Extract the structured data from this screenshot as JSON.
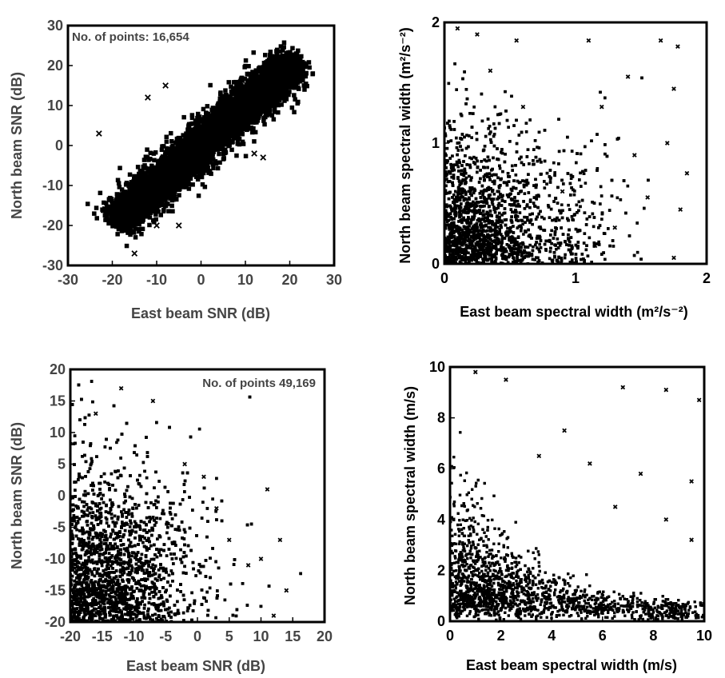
{
  "chart_data": [
    {
      "type": "scatter",
      "xlabel": "East beam SNR (dB)",
      "ylabel": "North beam SNR (dB)",
      "annotation": "No. of points: 16,654",
      "xlim": [
        -30,
        30
      ],
      "ylim": [
        -30,
        30
      ],
      "xticks": [
        -30,
        -20,
        -10,
        0,
        10,
        20,
        30
      ],
      "yticks": [
        -30,
        -20,
        -10,
        0,
        10,
        20,
        30
      ],
      "pattern": "dense elongated cluster along the line y = x from about (-20,-20) to (22,22)",
      "outliers": [
        [
          -23,
          3
        ],
        [
          -15,
          -27
        ],
        [
          -10,
          -20
        ],
        [
          -5,
          -20
        ],
        [
          -12,
          12
        ],
        [
          5,
          12
        ],
        [
          -8,
          15
        ],
        [
          15,
          8
        ],
        [
          18,
          13
        ],
        [
          -17,
          -14
        ],
        [
          12,
          -2
        ],
        [
          20,
          22
        ],
        [
          14,
          -3
        ],
        [
          -6,
          -12
        ]
      ]
    },
    {
      "type": "scatter",
      "xlabel": "East beam spectral width (m²/s⁻²)",
      "ylabel": "North beam spectral width (m²/s⁻²)",
      "xlim": [
        0,
        2
      ],
      "ylim": [
        0,
        2
      ],
      "xticks": [
        0,
        1,
        2
      ],
      "yticks": [
        0,
        1,
        2
      ],
      "pattern": "dense cluster near the origin (0–0.6) with scattered points thinning toward 2",
      "outliers": [
        [
          0.1,
          1.95
        ],
        [
          0.25,
          1.9
        ],
        [
          0.55,
          1.85
        ],
        [
          1.1,
          1.85
        ],
        [
          1.65,
          1.85
        ],
        [
          1.78,
          1.8
        ],
        [
          0.35,
          1.6
        ],
        [
          1.4,
          1.55
        ],
        [
          1.75,
          1.45
        ],
        [
          0.6,
          1.3
        ],
        [
          1.2,
          1.3
        ],
        [
          1.7,
          1.0
        ],
        [
          1.85,
          0.75
        ],
        [
          1.55,
          0.55
        ],
        [
          1.8,
          0.45
        ],
        [
          1.3,
          0.3
        ],
        [
          0.9,
          0.6
        ],
        [
          1.45,
          0.9
        ],
        [
          1.15,
          0.15
        ],
        [
          1.75,
          0.05
        ]
      ]
    },
    {
      "type": "scatter",
      "xlabel": "East beam SNR (dB)",
      "ylabel": "North beam SNR (dB)",
      "annotation": "No. of points 49,169",
      "xlim": [
        -20,
        20
      ],
      "ylim": [
        -20,
        20
      ],
      "xticks": [
        -20,
        -15,
        -10,
        -5,
        0,
        5,
        10,
        15,
        20
      ],
      "yticks": [
        -20,
        -15,
        -10,
        -5,
        0,
        5,
        10,
        15,
        20
      ],
      "pattern": "dense mass in the lower-left (x -20 to -7, y -20 to -3) spreading upward and rightward",
      "outliers": [
        [
          -12,
          17
        ],
        [
          -7,
          15
        ],
        [
          -16,
          13
        ],
        [
          1,
          3
        ],
        [
          5,
          -7
        ],
        [
          11,
          1
        ],
        [
          13,
          -7
        ],
        [
          14,
          -15
        ],
        [
          8,
          -11
        ],
        [
          -2,
          5
        ],
        [
          3,
          -2
        ],
        [
          10,
          -10
        ],
        [
          12,
          -19
        ]
      ]
    },
    {
      "type": "scatter",
      "xlabel": "East beam spectral width (m/s)",
      "ylabel": "North beam spectral width (m/s)",
      "xlim": [
        0,
        10
      ],
      "ylim": [
        0,
        10
      ],
      "xticks": [
        0,
        2,
        4,
        6,
        8,
        10
      ],
      "yticks": [
        0,
        2,
        4,
        6,
        8,
        10
      ],
      "pattern": "dense cluster at low widths (0–3) with a tail extending to the right along the bottom",
      "outliers": [
        [
          1,
          9.8
        ],
        [
          2.2,
          9.5
        ],
        [
          6.8,
          9.2
        ],
        [
          8.5,
          9.1
        ],
        [
          9.8,
          8.7
        ],
        [
          3.5,
          6.5
        ],
        [
          5.5,
          6.2
        ],
        [
          7.5,
          5.8
        ],
        [
          9.5,
          5.5
        ],
        [
          8.5,
          4.0
        ],
        [
          9.5,
          3.2
        ],
        [
          6.5,
          4.5
        ],
        [
          4.5,
          7.5
        ]
      ]
    }
  ]
}
